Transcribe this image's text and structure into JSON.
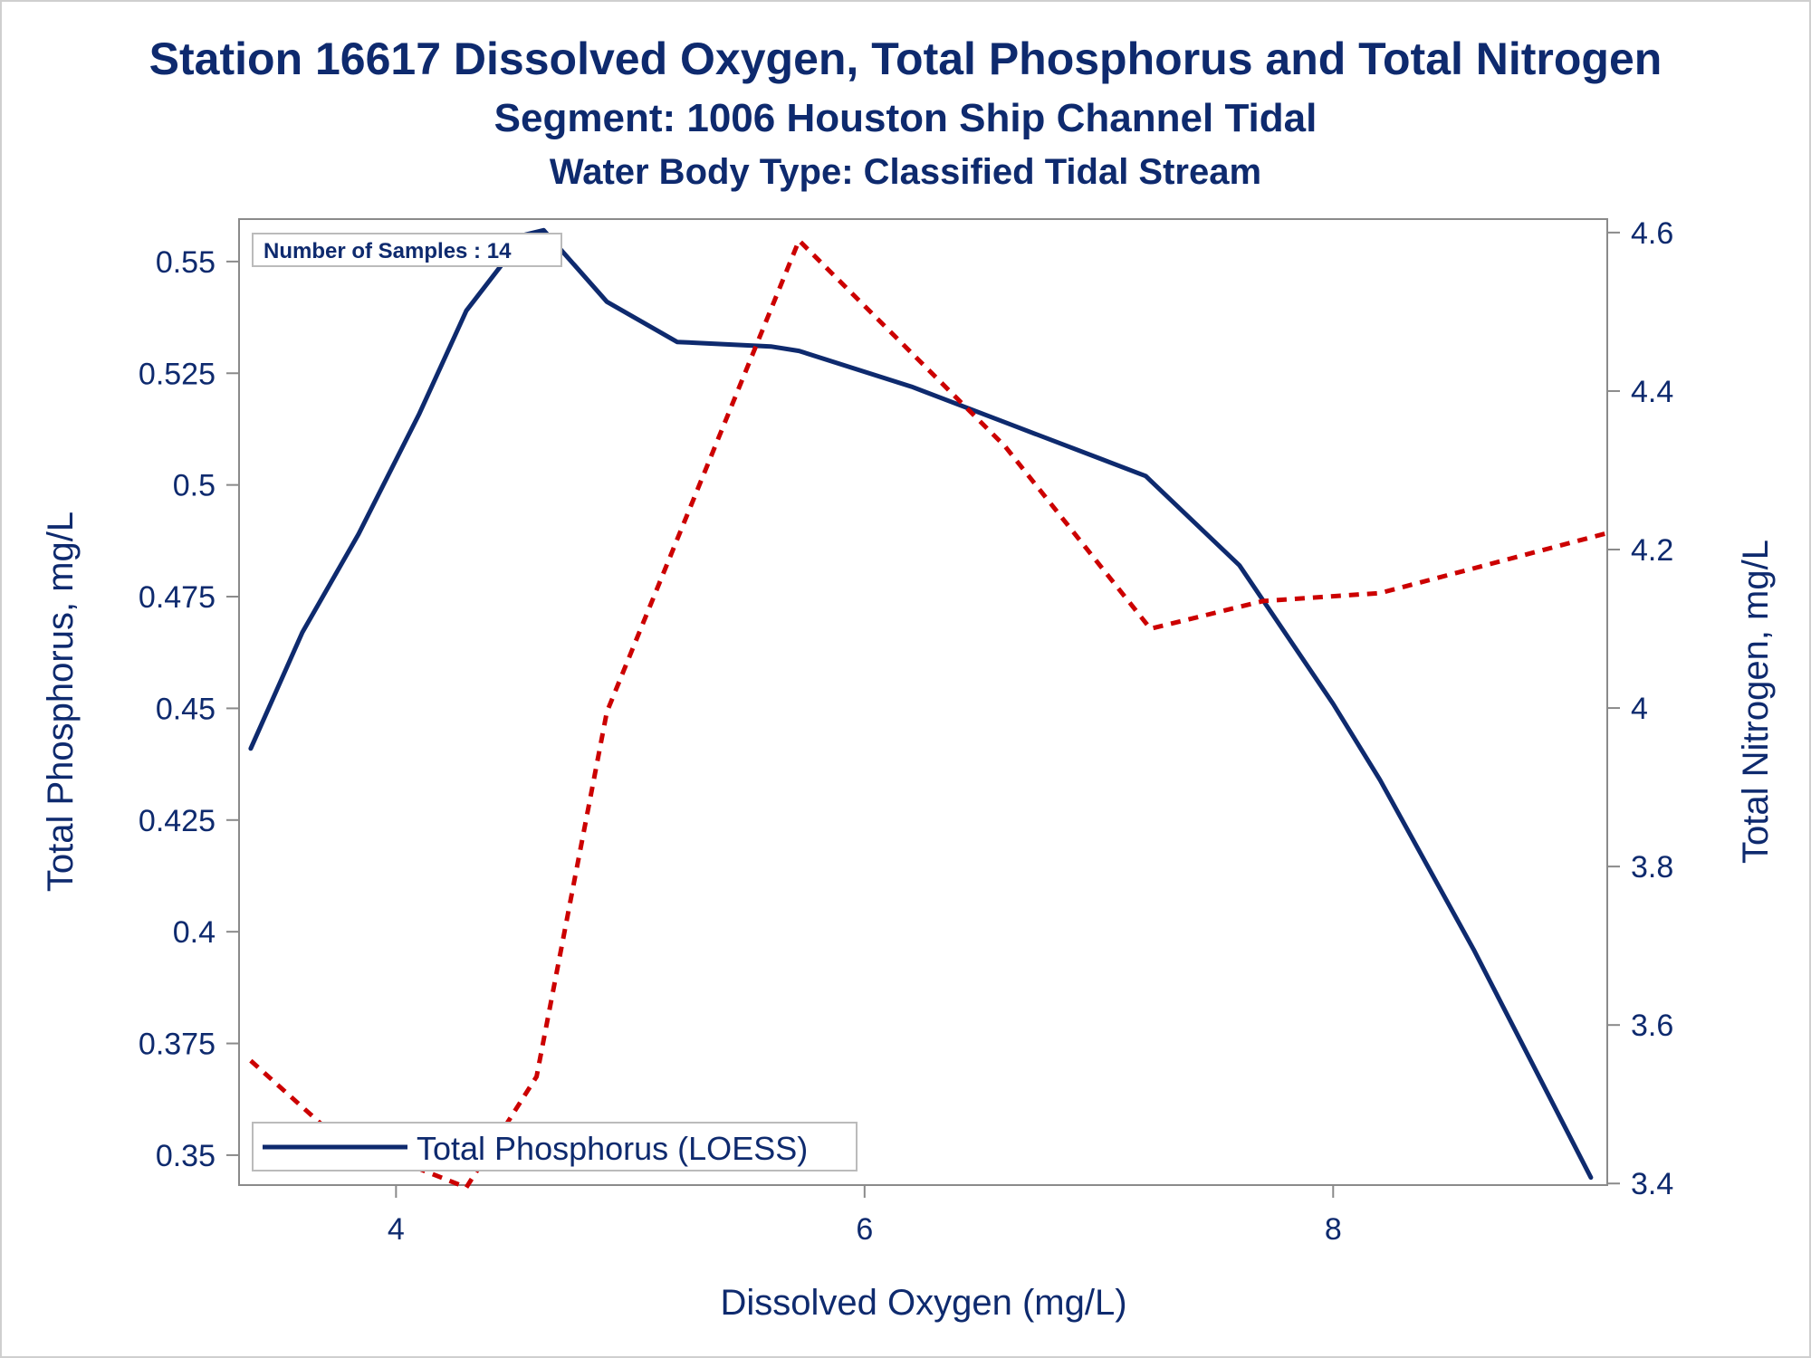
{
  "header": {
    "title": "Station 16617  Dissolved Oxygen, Total Phosphorus and Total Nitrogen",
    "subtitle1": "Segment: 1006  Houston Ship Channel Tidal",
    "subtitle2": "Water Body Type: Classified Tidal Stream"
  },
  "chart_data": {
    "type": "line",
    "xlabel": "Dissolved Oxygen (mg/L)",
    "ylabel_left": "Total Phosphorus, mg/L",
    "ylabel_right": "Total Nitrogen, mg/L",
    "xlim": [
      3.33,
      9.17
    ],
    "ylim_left": [
      0.3433,
      0.5595
    ],
    "ylim_right": [
      3.398,
      4.617
    ],
    "x_ticks": [
      4,
      6,
      8
    ],
    "y_ticks_left": [
      0.35,
      0.375,
      0.4,
      0.425,
      0.45,
      0.475,
      0.5,
      0.525,
      0.55
    ],
    "y_ticks_left_labels": [
      "0.35",
      "0.375",
      "0.4",
      "0.425",
      "0.45",
      "0.475",
      "0.5",
      "0.525",
      "0.55"
    ],
    "y_ticks_right": [
      3.4,
      3.6,
      3.8,
      4,
      4.2,
      4.4,
      4.6
    ],
    "y_ticks_right_labels": [
      "3.4",
      "3.6",
      "3.8",
      "4",
      "4.2",
      "4.4",
      "4.6"
    ],
    "grid": false,
    "annotation": "Number of Samples : 14",
    "legend": {
      "placement": "bottom-left",
      "entries": [
        "Total Phosphorus (LOESS)"
      ]
    },
    "series": [
      {
        "name": "Total Phosphorus (LOESS)",
        "axis": "left",
        "style": "solid",
        "color": "#0e2a6e",
        "x": [
          3.38,
          3.6,
          3.84,
          4.1,
          4.3,
          4.55,
          4.63,
          4.9,
          5.2,
          5.6,
          5.72,
          6.2,
          6.6,
          7.0,
          7.2,
          7.6,
          8.0,
          8.2,
          8.6,
          9.1
        ],
        "y": [
          0.441,
          0.467,
          0.489,
          0.516,
          0.539,
          0.556,
          0.557,
          0.541,
          0.532,
          0.531,
          0.53,
          0.522,
          0.514,
          0.506,
          0.502,
          0.482,
          0.451,
          0.434,
          0.396,
          0.345
        ]
      },
      {
        "name": "Total Nitrogen",
        "axis": "right",
        "style": "dashed",
        "color": "#cc0000",
        "x": [
          3.38,
          3.7,
          4.0,
          4.3,
          4.6,
          4.9,
          5.72,
          6.6,
          7.22,
          7.7,
          8.2,
          9.16
        ],
        "y": [
          3.555,
          3.47,
          3.43,
          3.395,
          3.535,
          3.995,
          4.59,
          4.33,
          4.1,
          4.135,
          4.145,
          4.22
        ]
      }
    ]
  }
}
